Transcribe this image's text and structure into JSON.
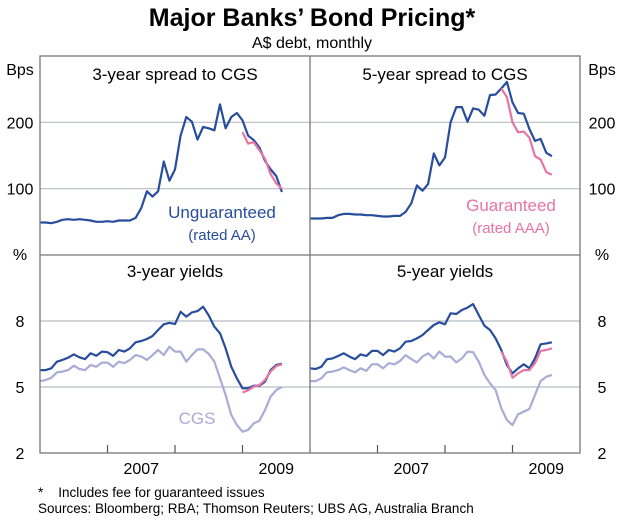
{
  "title": "Major Banks’ Bond Pricing*",
  "subtitle": "A$ debt, monthly",
  "footnote": "*    Includes fee for guaranteed issues",
  "sources": "Sources: Bloomberg; RBA; Thomson Reuters; UBS AG, Australia Branch",
  "colors": {
    "unguaranteed": "#284d9c",
    "guaranteed": "#e874a3",
    "cgs": "#a8acd6",
    "grid": "#b8bcc4"
  },
  "chart_data": [
    {
      "type": "line",
      "title": "3-year spread to CGS",
      "ylabel": "Bps",
      "ylim": [
        0,
        300
      ],
      "yticks": [
        100,
        200
      ],
      "xlim": [
        "2006-01",
        "2010-01"
      ],
      "xticklabels": [
        "2007",
        "2009"
      ],
      "grid": true,
      "annotations": [
        "Unguaranteed",
        "(rated AA)"
      ],
      "series": [
        {
          "name": "Unguaranteed (rated AA)",
          "color_key": "unguaranteed",
          "start": "2006-01",
          "values": [
            49,
            49,
            48,
            50,
            53,
            54,
            53,
            54,
            53,
            52,
            50,
            50,
            51,
            50,
            52,
            52,
            52,
            56,
            71,
            96,
            88,
            96,
            141,
            112,
            129,
            180,
            208,
            201,
            174,
            193,
            191,
            188,
            227,
            191,
            208,
            214,
            203,
            180,
            173,
            162,
            142,
            129,
            119,
            95
          ]
        },
        {
          "name": "Guaranteed",
          "color_key": "guaranteed",
          "start": "2009-01",
          "values": [
            185,
            168,
            170,
            158,
            145,
            122,
            108,
            100
          ]
        }
      ]
    },
    {
      "type": "line",
      "title": "5-year spread to CGS",
      "ylabel": "Bps",
      "ylim": [
        0,
        300
      ],
      "yticks": [
        100,
        200
      ],
      "xlim": [
        "2006-01",
        "2010-01"
      ],
      "xticklabels": [
        "2007",
        "2009"
      ],
      "grid": true,
      "annotations": [
        "Guaranteed",
        "(rated AAA)"
      ],
      "series": [
        {
          "name": "Unguaranteed",
          "color_key": "unguaranteed",
          "start": "2006-01",
          "values": [
            55,
            55,
            55,
            56,
            56,
            60,
            62,
            62,
            61,
            61,
            60,
            60,
            59,
            58,
            58,
            59,
            59,
            65,
            78,
            105,
            97,
            107,
            153,
            135,
            147,
            200,
            223,
            223,
            201,
            221,
            219,
            210,
            241,
            242,
            251,
            261,
            230,
            214,
            213,
            190,
            172,
            175,
            154,
            149
          ]
        },
        {
          "name": "Guaranteed (rated AAA)",
          "color_key": "guaranteed",
          "start": "2008-11",
          "values": [
            251,
            238,
            200,
            185,
            186,
            177,
            149,
            144,
            125,
            121
          ]
        }
      ]
    },
    {
      "type": "line",
      "title": "3-year yields",
      "ylabel": "%",
      "ylim": [
        2,
        11
      ],
      "yticks": [
        2,
        5,
        8
      ],
      "xlim": [
        "2006-01",
        "2010-01"
      ],
      "xticklabels": [
        "2007",
        "2009"
      ],
      "grid": true,
      "annotations": [
        "CGS"
      ],
      "series": [
        {
          "name": "Unguaranteed",
          "color_key": "unguaranteed",
          "start": "2006-01",
          "values": [
            5.77,
            5.77,
            5.85,
            6.15,
            6.23,
            6.33,
            6.48,
            6.35,
            6.27,
            6.53,
            6.42,
            6.61,
            6.58,
            6.42,
            6.68,
            6.61,
            6.76,
            7.03,
            7.09,
            7.18,
            7.32,
            7.59,
            7.85,
            7.92,
            7.86,
            8.42,
            8.2,
            8.39,
            8.45,
            8.65,
            8.25,
            7.74,
            7.44,
            6.76,
            5.92,
            5.39,
            4.94,
            4.94,
            5.06,
            5.06,
            5.24,
            5.77,
            6.0,
            6.06
          ]
        },
        {
          "name": "CGS",
          "color_key": "cgs",
          "start": "2006-01",
          "values": [
            5.27,
            5.32,
            5.42,
            5.67,
            5.7,
            5.77,
            5.97,
            5.82,
            5.77,
            6.0,
            5.92,
            6.11,
            6.11,
            5.92,
            6.15,
            6.08,
            6.23,
            6.45,
            6.38,
            6.23,
            6.45,
            6.68,
            6.45,
            6.83,
            6.61,
            6.61,
            6.15,
            6.45,
            6.71,
            6.71,
            6.5,
            6.15,
            5.39,
            4.64,
            3.73,
            3.27,
            2.97,
            3.05,
            3.35,
            3.47,
            3.95,
            4.56,
            4.86,
            5.0
          ]
        },
        {
          "name": "Guaranteed",
          "color_key": "guaranteed",
          "start": "2009-01",
          "values": [
            4.75,
            4.85,
            5.02,
            5.09,
            5.32,
            5.7,
            5.95,
            6.03
          ]
        }
      ]
    },
    {
      "type": "line",
      "title": "5-year yields",
      "ylabel": "%",
      "ylim": [
        2,
        11
      ],
      "yticks": [
        2,
        5,
        8
      ],
      "xlim": [
        "2006-01",
        "2010-01"
      ],
      "xticklabels": [
        "2007",
        "2009"
      ],
      "grid": true,
      "series": [
        {
          "name": "Unguaranteed",
          "color_key": "unguaranteed",
          "start": "2006-01",
          "values": [
            5.85,
            5.82,
            5.92,
            6.26,
            6.3,
            6.41,
            6.53,
            6.38,
            6.27,
            6.48,
            6.41,
            6.64,
            6.64,
            6.45,
            6.68,
            6.61,
            6.76,
            7.06,
            7.09,
            7.21,
            7.36,
            7.59,
            7.82,
            7.94,
            7.85,
            8.35,
            8.32,
            8.5,
            8.61,
            8.77,
            8.27,
            7.79,
            7.59,
            7.21,
            6.68,
            6.0,
            5.62,
            5.85,
            6.03,
            5.85,
            6.3,
            6.94,
            6.98,
            7.03
          ]
        },
        {
          "name": "CGS",
          "color_key": "cgs",
          "start": "2006-01",
          "values": [
            5.27,
            5.27,
            5.39,
            5.67,
            5.7,
            5.77,
            5.89,
            5.77,
            5.67,
            5.85,
            5.73,
            6.03,
            6.03,
            5.85,
            6.08,
            6.03,
            6.18,
            6.45,
            6.27,
            6.12,
            6.38,
            6.53,
            6.3,
            6.61,
            6.38,
            6.38,
            6.12,
            6.3,
            6.61,
            6.58,
            6.15,
            5.55,
            5.17,
            4.86,
            4.03,
            3.5,
            3.27,
            3.76,
            3.88,
            4.0,
            4.64,
            5.27,
            5.47,
            5.55
          ]
        },
        {
          "name": "Guaranteed",
          "color_key": "guaranteed",
          "start": "2008-11",
          "values": [
            6.61,
            6.15,
            5.42,
            5.62,
            5.77,
            5.77,
            6.08,
            6.64,
            6.68,
            6.76
          ]
        }
      ]
    }
  ]
}
